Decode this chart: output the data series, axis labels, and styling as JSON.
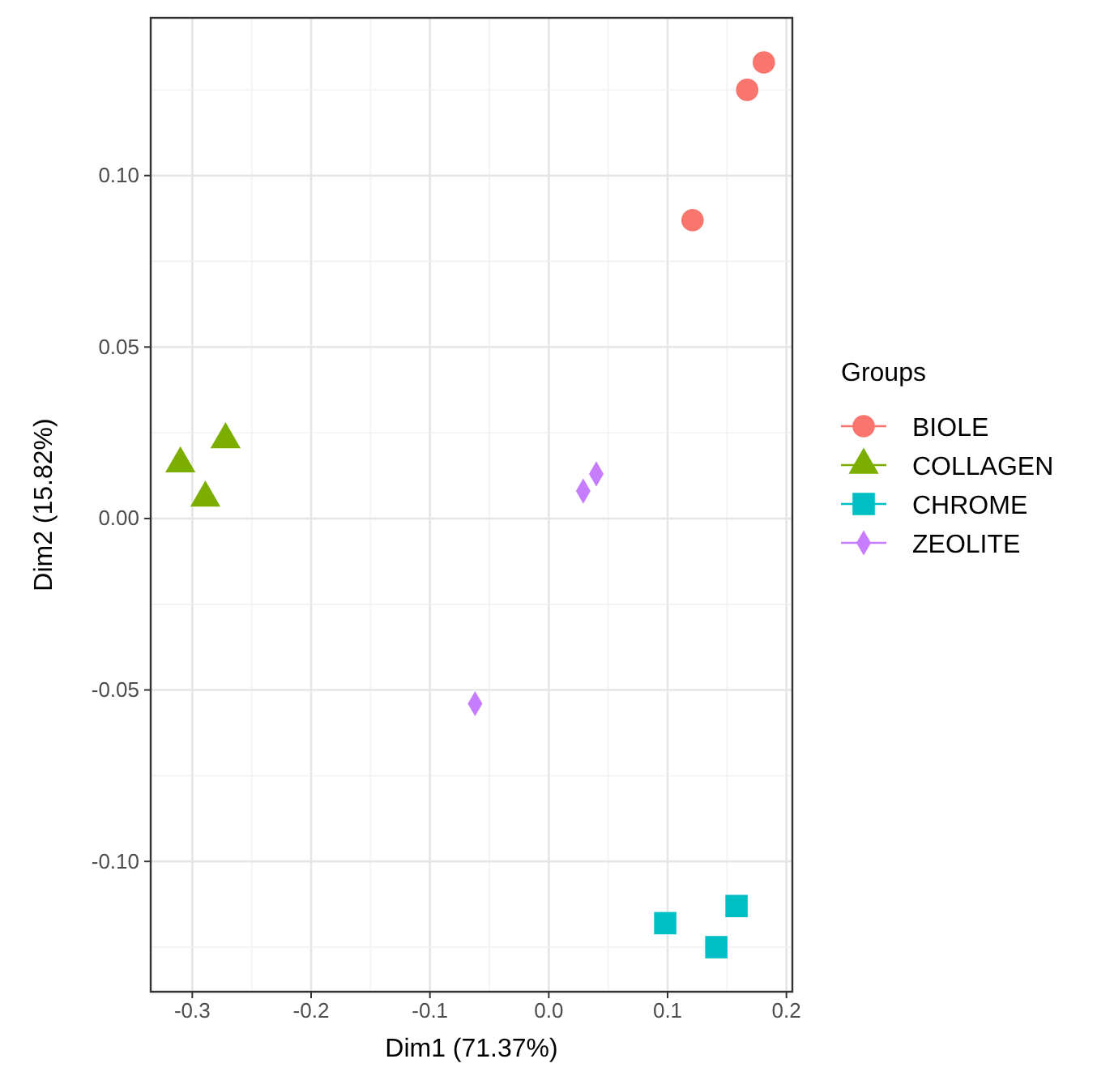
{
  "chart_data": {
    "type": "scatter",
    "xlabel": "Dim1 (71.37%)",
    "ylabel": "Dim2 (15.82%)",
    "legend_title": "Groups",
    "legend": "right",
    "grid": true,
    "xlim": [
      -0.335,
      0.205
    ],
    "ylim": [
      -0.138,
      0.146
    ],
    "xticks": [
      {
        "value": -0.3,
        "label": "-0.3"
      },
      {
        "value": -0.2,
        "label": "-0.2"
      },
      {
        "value": -0.1,
        "label": "-0.1"
      },
      {
        "value": 0,
        "label": "0.0"
      },
      {
        "value": 0.1,
        "label": "0.1"
      },
      {
        "value": 0.2,
        "label": "0.2"
      }
    ],
    "yticks": [
      {
        "value": -0.1,
        "label": "-0.10"
      },
      {
        "value": -0.05,
        "label": "-0.05"
      },
      {
        "value": 0,
        "label": "0.00"
      },
      {
        "value": 0.05,
        "label": "0.05"
      },
      {
        "value": 0.1,
        "label": "0.10"
      }
    ],
    "series": [
      {
        "name": "BIOLE",
        "color": "#f8766d",
        "marker": "circle",
        "x": [
          0.181,
          0.167,
          0.121
        ],
        "values": [
          0.133,
          0.125,
          0.087
        ]
      },
      {
        "name": "COLLAGEN",
        "color": "#7cae00",
        "marker": "triangle",
        "x": [
          -0.272,
          -0.31,
          -0.289
        ],
        "values": [
          0.023,
          0.016,
          0.006
        ]
      },
      {
        "name": "CHROME",
        "color": "#00bfc4",
        "marker": "square",
        "x": [
          0.098,
          0.158,
          0.141
        ],
        "values": [
          -0.118,
          -0.113,
          -0.125
        ]
      },
      {
        "name": "ZEOLITE",
        "color": "#c77cff",
        "marker": "diamond",
        "x": [
          0.04,
          0.029,
          -0.062
        ],
        "values": [
          0.013,
          0.008,
          -0.054
        ]
      }
    ]
  }
}
